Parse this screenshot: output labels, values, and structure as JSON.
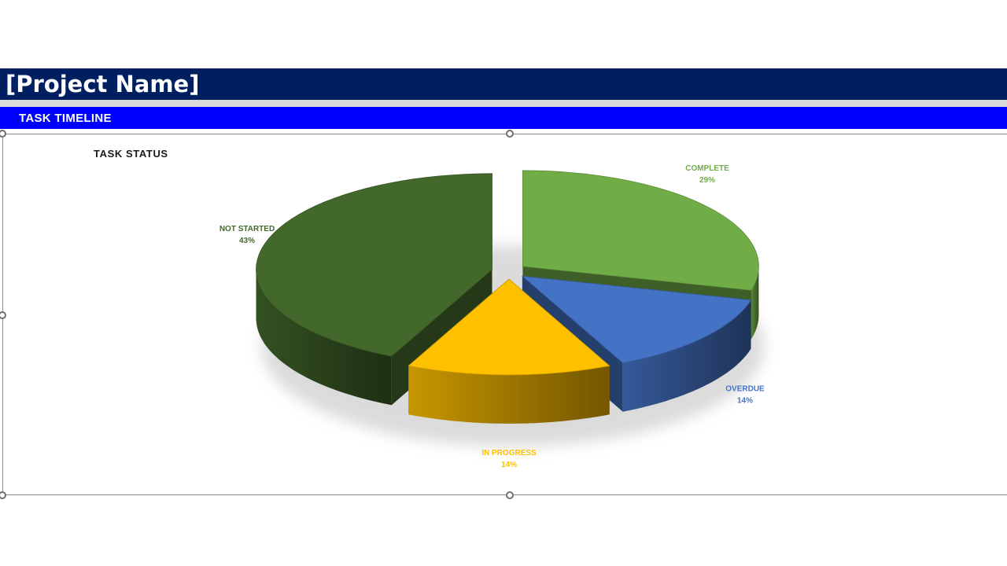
{
  "header": {
    "project_name": "[Project Name]",
    "section_title": "TASK TIMELINE"
  },
  "chart_data": {
    "type": "pie",
    "title": "TASK STATUS",
    "three_d": true,
    "legend": "none",
    "slices": [
      {
        "label": "COMPLETE",
        "value": 29,
        "value_label": "29%",
        "color": "#70ad47",
        "label_color": "#70ad47"
      },
      {
        "label": "OVERDUE",
        "value": 14,
        "value_label": "14%",
        "color": "#4472c4",
        "label_color": "#4472c4"
      },
      {
        "label": "IN PROGRESS",
        "value": 14,
        "value_label": "14%",
        "color": "#ffc000",
        "label_color": "#ffc000"
      },
      {
        "label": "NOT STARTED",
        "value": 43,
        "value_label": "43%",
        "color": "#43682b",
        "label_color": "#43682b"
      }
    ]
  },
  "colors": {
    "title_bar": "#001f60",
    "section_bar": "#0000ff",
    "divider": "#d9d9d9"
  }
}
